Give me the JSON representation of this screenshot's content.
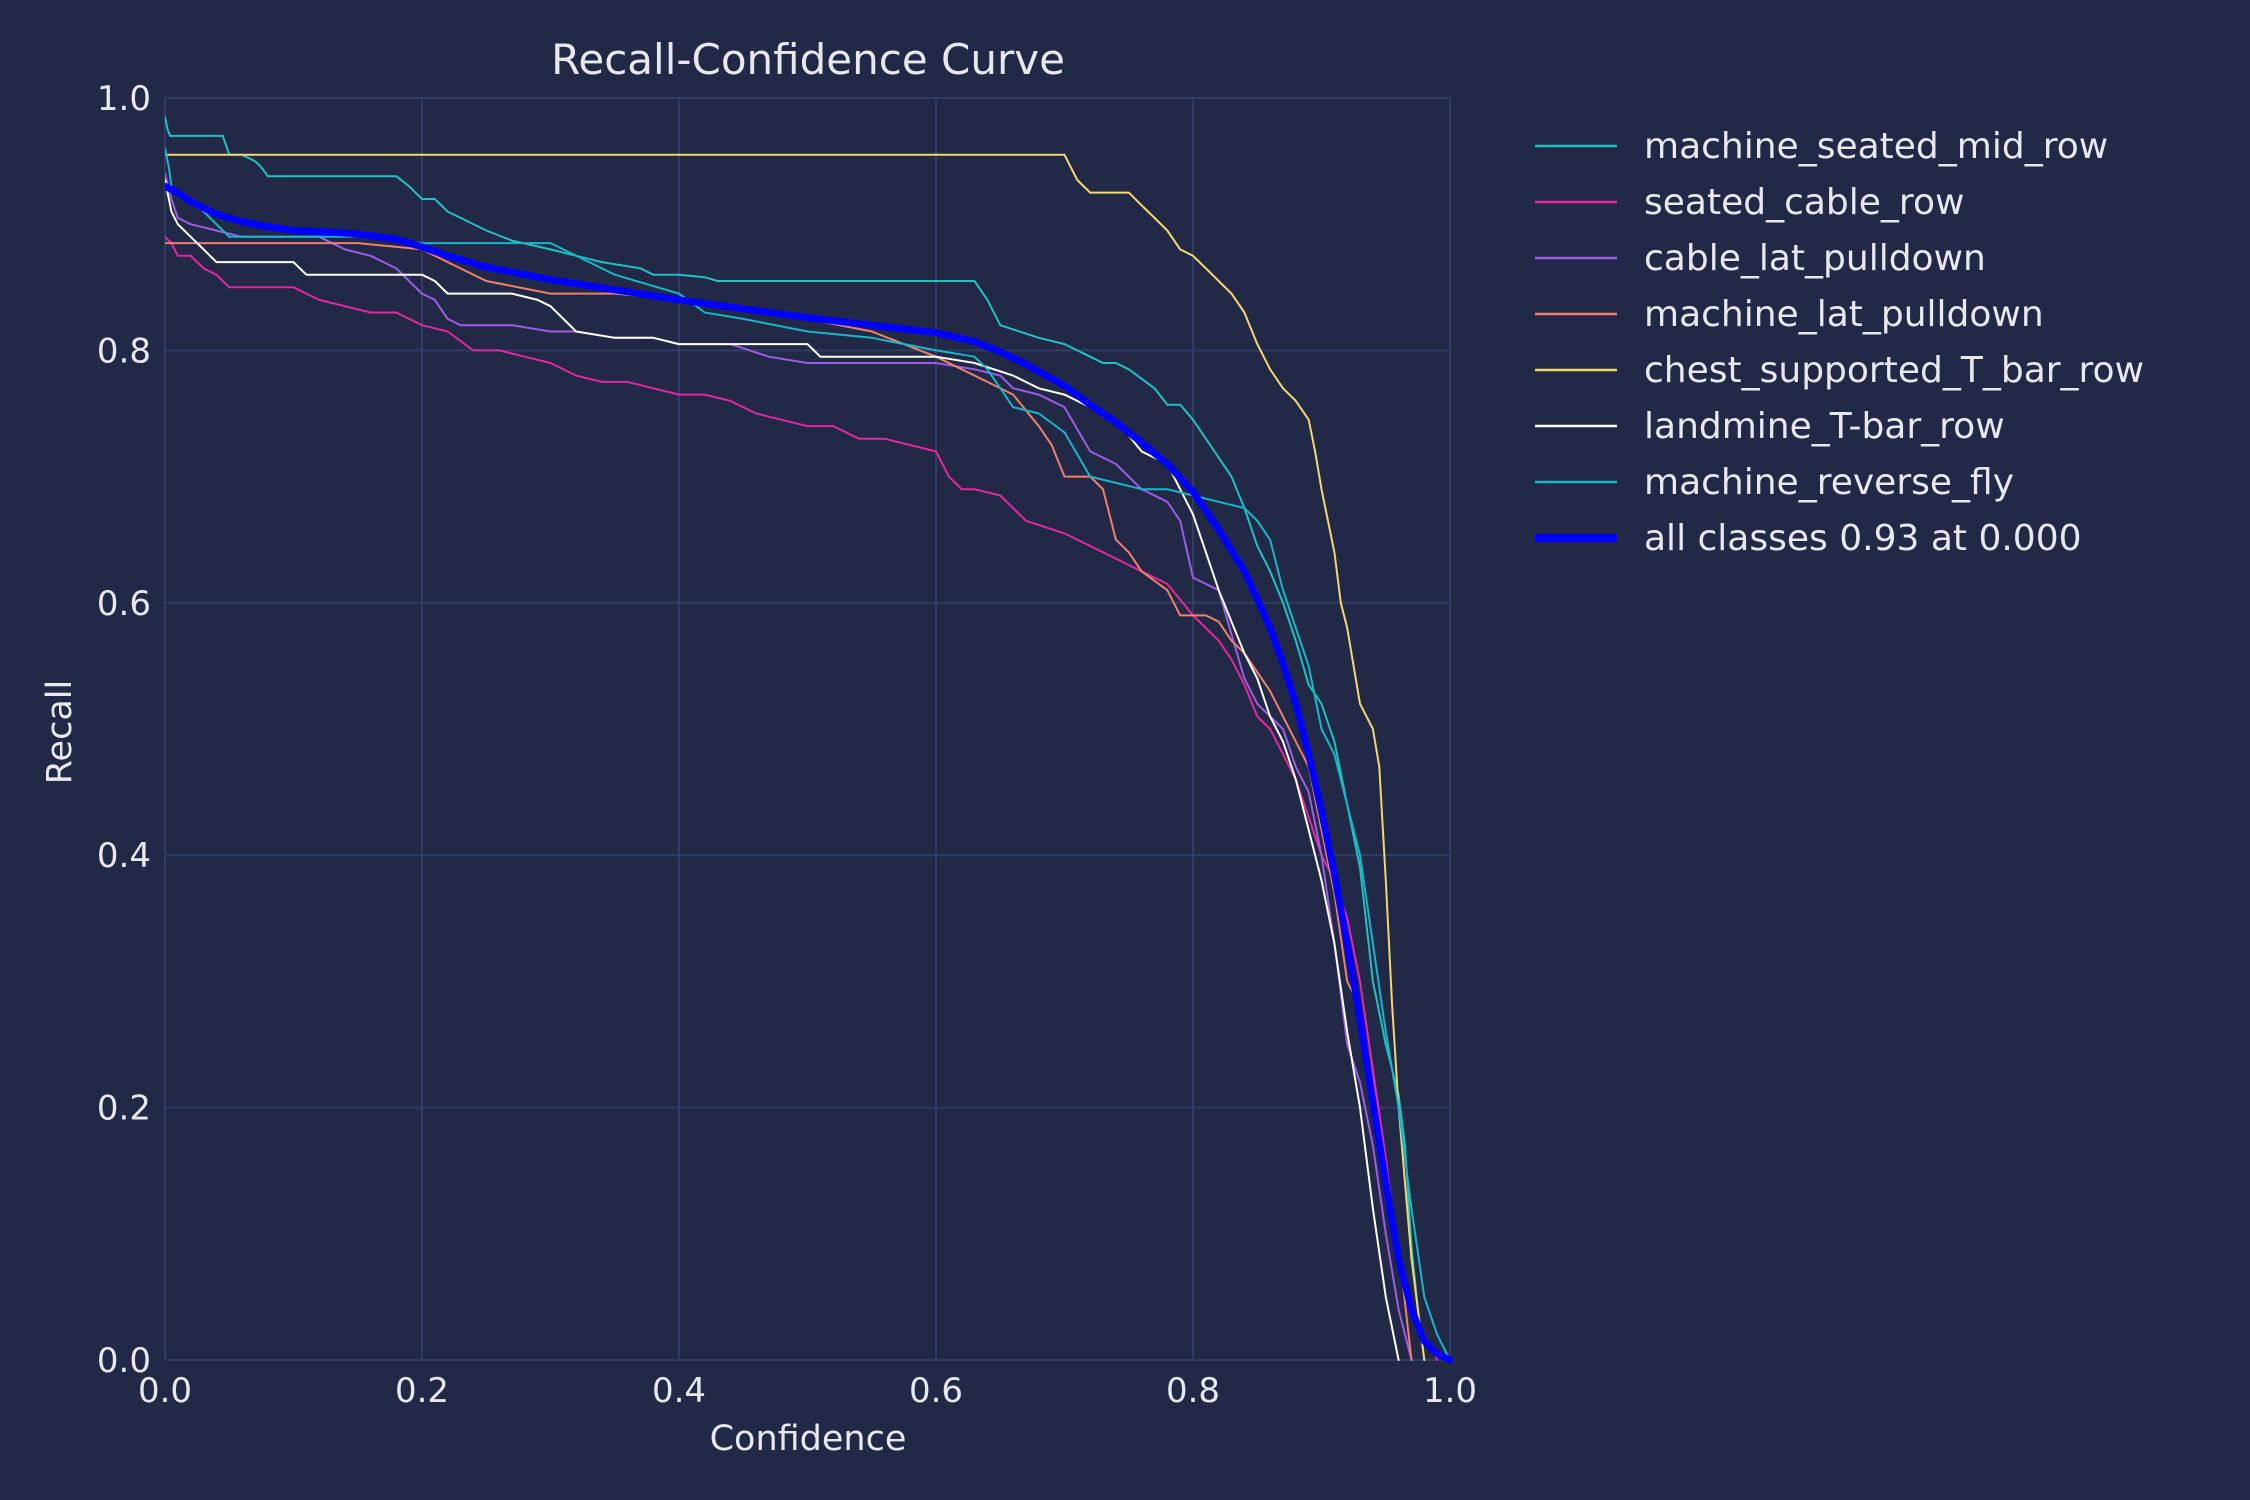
{
  "chart_data": {
    "type": "line",
    "title": "Recall-Confidence Curve",
    "xlabel": "Confidence",
    "ylabel": "Recall",
    "xlim": [
      0,
      1
    ],
    "ylim": [
      0,
      1
    ],
    "xticks": [
      "0.0",
      "0.2",
      "0.4",
      "0.6",
      "0.8",
      "1.0"
    ],
    "yticks": [
      "0.0",
      "0.2",
      "0.4",
      "0.6",
      "0.8",
      "1.0"
    ],
    "grid": true,
    "legend_placement": "outside-right",
    "background_color": "#212946",
    "grid_color": "#2f3d63",
    "text_color": "#e8e8ee",
    "series": [
      {
        "name": "machine_seated_mid_row",
        "color": "#1fc1c1",
        "width": 2,
        "x": [
          0,
          0.002,
          0.004,
          0.01,
          0.02,
          0.03,
          0.04,
          0.045,
          0.05,
          0.06,
          0.07,
          0.075,
          0.08,
          0.1,
          0.12,
          0.14,
          0.16,
          0.18,
          0.19,
          0.2,
          0.21,
          0.22,
          0.23,
          0.25,
          0.27,
          0.3,
          0.32,
          0.34,
          0.37,
          0.38,
          0.4,
          0.42,
          0.43,
          0.46,
          0.5,
          0.55,
          0.6,
          0.63,
          0.64,
          0.65,
          0.68,
          0.7,
          0.72,
          0.73,
          0.74,
          0.75,
          0.77,
          0.78,
          0.79,
          0.8,
          0.81,
          0.82,
          0.83,
          0.84,
          0.85,
          0.86,
          0.87,
          0.88,
          0.89,
          0.9,
          0.91,
          0.92,
          0.93,
          0.94,
          0.95,
          0.96,
          0.965,
          0.97,
          0.975,
          0.98
        ],
        "y": [
          0.985,
          0.975,
          0.97,
          0.97,
          0.97,
          0.97,
          0.97,
          0.97,
          0.955,
          0.955,
          0.95,
          0.945,
          0.938,
          0.938,
          0.938,
          0.938,
          0.938,
          0.938,
          0.93,
          0.92,
          0.92,
          0.91,
          0.905,
          0.895,
          0.887,
          0.88,
          0.875,
          0.87,
          0.865,
          0.86,
          0.86,
          0.858,
          0.855,
          0.855,
          0.855,
          0.855,
          0.855,
          0.855,
          0.84,
          0.82,
          0.81,
          0.805,
          0.795,
          0.79,
          0.79,
          0.785,
          0.77,
          0.757,
          0.757,
          0.745,
          0.73,
          0.715,
          0.7,
          0.675,
          0.645,
          0.625,
          0.6,
          0.57,
          0.535,
          0.52,
          0.49,
          0.44,
          0.39,
          0.3,
          0.25,
          0.21,
          0.17,
          0.09,
          0.04,
          0.0
        ]
      },
      {
        "name": "seated_cable_row",
        "color": "#e4279c",
        "width": 2,
        "x": [
          0,
          0.005,
          0.01,
          0.02,
          0.03,
          0.04,
          0.05,
          0.07,
          0.1,
          0.12,
          0.14,
          0.16,
          0.18,
          0.2,
          0.22,
          0.24,
          0.26,
          0.28,
          0.3,
          0.32,
          0.34,
          0.36,
          0.38,
          0.4,
          0.42,
          0.44,
          0.46,
          0.48,
          0.5,
          0.52,
          0.54,
          0.56,
          0.58,
          0.6,
          0.61,
          0.62,
          0.63,
          0.65,
          0.67,
          0.7,
          0.72,
          0.74,
          0.76,
          0.78,
          0.8,
          0.82,
          0.83,
          0.84,
          0.85,
          0.86,
          0.87,
          0.88,
          0.89,
          0.9,
          0.91,
          0.92,
          0.93,
          0.94,
          0.95,
          0.96,
          0.97,
          0.98,
          0.99
        ],
        "y": [
          0.89,
          0.885,
          0.875,
          0.875,
          0.865,
          0.86,
          0.85,
          0.85,
          0.85,
          0.84,
          0.835,
          0.83,
          0.83,
          0.82,
          0.815,
          0.8,
          0.8,
          0.795,
          0.79,
          0.78,
          0.775,
          0.775,
          0.77,
          0.765,
          0.765,
          0.76,
          0.75,
          0.745,
          0.74,
          0.74,
          0.73,
          0.73,
          0.725,
          0.72,
          0.7,
          0.69,
          0.69,
          0.685,
          0.665,
          0.655,
          0.645,
          0.635,
          0.625,
          0.615,
          0.59,
          0.57,
          0.555,
          0.535,
          0.51,
          0.5,
          0.48,
          0.46,
          0.43,
          0.4,
          0.38,
          0.35,
          0.3,
          0.23,
          0.16,
          0.08,
          0.04,
          0.02,
          0.0
        ]
      },
      {
        "name": "cable_lat_pulldown",
        "color": "#9b5de5",
        "width": 2,
        "x": [
          0,
          0.005,
          0.01,
          0.02,
          0.04,
          0.06,
          0.08,
          0.1,
          0.12,
          0.14,
          0.16,
          0.17,
          0.18,
          0.19,
          0.2,
          0.21,
          0.22,
          0.23,
          0.25,
          0.27,
          0.3,
          0.32,
          0.35,
          0.38,
          0.4,
          0.44,
          0.47,
          0.5,
          0.55,
          0.6,
          0.63,
          0.65,
          0.66,
          0.68,
          0.7,
          0.72,
          0.74,
          0.76,
          0.78,
          0.79,
          0.8,
          0.81,
          0.82,
          0.83,
          0.84,
          0.85,
          0.86,
          0.87,
          0.88,
          0.89,
          0.9,
          0.91,
          0.92,
          0.93,
          0.94,
          0.95,
          0.96,
          0.97
        ],
        "y": [
          0.94,
          0.92,
          0.905,
          0.9,
          0.895,
          0.89,
          0.89,
          0.89,
          0.89,
          0.88,
          0.875,
          0.87,
          0.865,
          0.855,
          0.845,
          0.84,
          0.825,
          0.82,
          0.82,
          0.82,
          0.815,
          0.815,
          0.81,
          0.81,
          0.805,
          0.805,
          0.795,
          0.79,
          0.79,
          0.79,
          0.785,
          0.78,
          0.77,
          0.765,
          0.755,
          0.72,
          0.71,
          0.69,
          0.68,
          0.665,
          0.62,
          0.615,
          0.61,
          0.575,
          0.54,
          0.52,
          0.51,
          0.5,
          0.47,
          0.45,
          0.4,
          0.33,
          0.25,
          0.22,
          0.17,
          0.1,
          0.04,
          0.0
        ]
      },
      {
        "name": "machine_lat_pulldown",
        "color": "#f07f6b",
        "width": 2,
        "x": [
          0,
          0.05,
          0.1,
          0.15,
          0.2,
          0.22,
          0.25,
          0.3,
          0.35,
          0.4,
          0.45,
          0.5,
          0.55,
          0.6,
          0.64,
          0.66,
          0.68,
          0.69,
          0.7,
          0.71,
          0.72,
          0.73,
          0.74,
          0.75,
          0.76,
          0.78,
          0.79,
          0.8,
          0.81,
          0.82,
          0.83,
          0.84,
          0.85,
          0.86,
          0.87,
          0.88,
          0.89,
          0.9,
          0.91,
          0.92,
          0.93,
          0.94,
          0.95,
          0.96,
          0.97
        ],
        "y": [
          0.885,
          0.885,
          0.885,
          0.885,
          0.88,
          0.87,
          0.855,
          0.845,
          0.845,
          0.84,
          0.835,
          0.825,
          0.815,
          0.795,
          0.775,
          0.765,
          0.74,
          0.725,
          0.7,
          0.7,
          0.7,
          0.69,
          0.65,
          0.64,
          0.625,
          0.61,
          0.59,
          0.59,
          0.59,
          0.585,
          0.57,
          0.56,
          0.545,
          0.53,
          0.51,
          0.49,
          0.47,
          0.42,
          0.37,
          0.3,
          0.28,
          0.22,
          0.15,
          0.09,
          0.0
        ]
      },
      {
        "name": "chest_supported_T_bar_row",
        "color": "#f5d76e",
        "width": 2,
        "x": [
          0,
          0.1,
          0.2,
          0.3,
          0.4,
          0.5,
          0.6,
          0.68,
          0.7,
          0.705,
          0.71,
          0.72,
          0.73,
          0.74,
          0.75,
          0.76,
          0.77,
          0.78,
          0.79,
          0.8,
          0.81,
          0.82,
          0.83,
          0.84,
          0.85,
          0.86,
          0.87,
          0.88,
          0.89,
          0.895,
          0.9,
          0.91,
          0.915,
          0.92,
          0.925,
          0.93,
          0.935,
          0.94,
          0.945,
          0.95,
          0.955,
          0.96,
          0.97,
          0.98
        ],
        "y": [
          0.955,
          0.955,
          0.955,
          0.955,
          0.955,
          0.955,
          0.955,
          0.955,
          0.955,
          0.945,
          0.935,
          0.925,
          0.925,
          0.925,
          0.925,
          0.915,
          0.905,
          0.895,
          0.88,
          0.875,
          0.865,
          0.855,
          0.845,
          0.83,
          0.805,
          0.785,
          0.77,
          0.76,
          0.745,
          0.72,
          0.69,
          0.64,
          0.6,
          0.58,
          0.55,
          0.52,
          0.51,
          0.5,
          0.47,
          0.38,
          0.28,
          0.2,
          0.08,
          0.0
        ]
      },
      {
        "name": "landmine_T-bar_row",
        "color": "#ffffff",
        "width": 2,
        "x": [
          0,
          0.005,
          0.01,
          0.02,
          0.03,
          0.04,
          0.06,
          0.08,
          0.1,
          0.11,
          0.13,
          0.15,
          0.17,
          0.19,
          0.2,
          0.21,
          0.22,
          0.25,
          0.27,
          0.29,
          0.3,
          0.31,
          0.32,
          0.35,
          0.38,
          0.4,
          0.42,
          0.45,
          0.5,
          0.51,
          0.55,
          0.6,
          0.63,
          0.66,
          0.68,
          0.7,
          0.72,
          0.74,
          0.76,
          0.78,
          0.79,
          0.8,
          0.81,
          0.82,
          0.83,
          0.84,
          0.85,
          0.86,
          0.87,
          0.88,
          0.89,
          0.9,
          0.91,
          0.92,
          0.93,
          0.94,
          0.95,
          0.96
        ],
        "y": [
          0.935,
          0.91,
          0.9,
          0.89,
          0.88,
          0.87,
          0.87,
          0.87,
          0.87,
          0.86,
          0.86,
          0.86,
          0.86,
          0.86,
          0.86,
          0.855,
          0.845,
          0.845,
          0.845,
          0.84,
          0.835,
          0.825,
          0.815,
          0.81,
          0.81,
          0.805,
          0.805,
          0.805,
          0.805,
          0.795,
          0.795,
          0.795,
          0.79,
          0.78,
          0.77,
          0.765,
          0.755,
          0.745,
          0.72,
          0.71,
          0.69,
          0.67,
          0.64,
          0.61,
          0.585,
          0.56,
          0.54,
          0.51,
          0.49,
          0.46,
          0.42,
          0.38,
          0.33,
          0.26,
          0.2,
          0.12,
          0.05,
          0.0
        ]
      },
      {
        "name": "machine_reverse_fly",
        "color": "#17b6c8",
        "width": 2,
        "x": [
          0,
          0.003,
          0.005,
          0.01,
          0.02,
          0.03,
          0.04,
          0.05,
          0.1,
          0.15,
          0.2,
          0.25,
          0.3,
          0.35,
          0.4,
          0.42,
          0.45,
          0.5,
          0.55,
          0.6,
          0.63,
          0.64,
          0.65,
          0.66,
          0.68,
          0.7,
          0.72,
          0.74,
          0.76,
          0.78,
          0.8,
          0.82,
          0.84,
          0.85,
          0.86,
          0.87,
          0.88,
          0.89,
          0.9,
          0.91,
          0.92,
          0.93,
          0.94,
          0.95,
          0.96,
          0.97,
          0.98,
          0.99,
          1.0
        ],
        "y": [
          0.96,
          0.945,
          0.93,
          0.925,
          0.92,
          0.91,
          0.9,
          0.89,
          0.89,
          0.89,
          0.885,
          0.885,
          0.885,
          0.86,
          0.845,
          0.83,
          0.825,
          0.815,
          0.81,
          0.8,
          0.795,
          0.785,
          0.77,
          0.755,
          0.75,
          0.735,
          0.7,
          0.695,
          0.69,
          0.69,
          0.685,
          0.68,
          0.675,
          0.665,
          0.65,
          0.61,
          0.58,
          0.55,
          0.5,
          0.48,
          0.44,
          0.4,
          0.33,
          0.26,
          0.2,
          0.12,
          0.05,
          0.02,
          0.0
        ]
      },
      {
        "name": "all classes 0.93 at 0.000",
        "color": "#0000ff",
        "width": 7,
        "x": [
          0,
          0.01,
          0.02,
          0.04,
          0.06,
          0.08,
          0.1,
          0.12,
          0.14,
          0.16,
          0.18,
          0.2,
          0.22,
          0.25,
          0.3,
          0.35,
          0.4,
          0.45,
          0.5,
          0.55,
          0.6,
          0.63,
          0.65,
          0.67,
          0.7,
          0.72,
          0.74,
          0.76,
          0.78,
          0.8,
          0.82,
          0.84,
          0.85,
          0.86,
          0.87,
          0.88,
          0.89,
          0.9,
          0.91,
          0.92,
          0.93,
          0.94,
          0.95,
          0.96,
          0.97,
          0.98,
          0.99,
          1.0
        ],
        "y": [
          0.93,
          0.925,
          0.918,
          0.908,
          0.902,
          0.898,
          0.895,
          0.894,
          0.893,
          0.891,
          0.888,
          0.882,
          0.875,
          0.866,
          0.856,
          0.848,
          0.84,
          0.833,
          0.826,
          0.82,
          0.814,
          0.807,
          0.799,
          0.789,
          0.772,
          0.757,
          0.743,
          0.727,
          0.71,
          0.688,
          0.658,
          0.625,
          0.603,
          0.58,
          0.552,
          0.52,
          0.48,
          0.435,
          0.385,
          0.33,
          0.27,
          0.205,
          0.14,
          0.08,
          0.04,
          0.015,
          0.005,
          0.0
        ]
      }
    ]
  }
}
